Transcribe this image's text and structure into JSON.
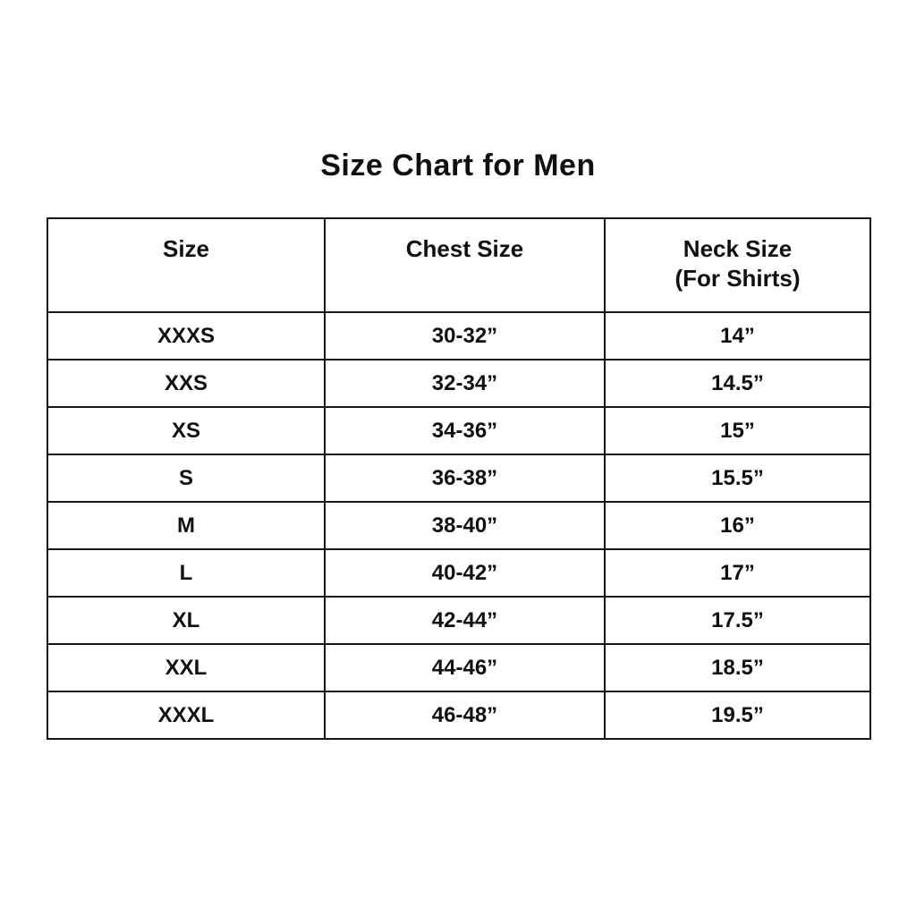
{
  "title": "Size Chart for Men",
  "colors": {
    "background": "#ffffff",
    "border": "#161616",
    "text": "#101010"
  },
  "table": {
    "headers": [
      {
        "label": "Size",
        "sublabel": ""
      },
      {
        "label": "Chest Size",
        "sublabel": ""
      },
      {
        "label": "Neck Size",
        "sublabel": "(For Shirts)"
      }
    ],
    "rows": [
      {
        "size": "XXXS",
        "chest": "30-32”",
        "neck": "14”"
      },
      {
        "size": "XXS",
        "chest": "32-34”",
        "neck": "14.5”"
      },
      {
        "size": "XS",
        "chest": "34-36”",
        "neck": "15”"
      },
      {
        "size": "S",
        "chest": "36-38”",
        "neck": "15.5”"
      },
      {
        "size": "M",
        "chest": "38-40”",
        "neck": "16”"
      },
      {
        "size": "L",
        "chest": "40-42”",
        "neck": "17”"
      },
      {
        "size": "XL",
        "chest": "42-44”",
        "neck": "17.5”"
      },
      {
        "size": "XXL",
        "chest": "44-46”",
        "neck": "18.5”"
      },
      {
        "size": "XXXL",
        "chest": "46-48”",
        "neck": "19.5”"
      }
    ]
  },
  "chart_data": {
    "type": "table",
    "title": "Size Chart for Men",
    "columns": [
      "Size",
      "Chest Size",
      "Neck Size (For Shirts)"
    ],
    "rows": [
      [
        "XXXS",
        "30-32”",
        "14”"
      ],
      [
        "XXS",
        "32-34”",
        "14.5”"
      ],
      [
        "XS",
        "34-36”",
        "15”"
      ],
      [
        "S",
        "36-38”",
        "15.5”"
      ],
      [
        "M",
        "38-40”",
        "16”"
      ],
      [
        "L",
        "40-42”",
        "17”"
      ],
      [
        "XL",
        "42-44”",
        "17.5”"
      ],
      [
        "XXL",
        "44-46”",
        "18.5”"
      ],
      [
        "XXXL",
        "46-48”",
        "19.5”"
      ]
    ]
  }
}
